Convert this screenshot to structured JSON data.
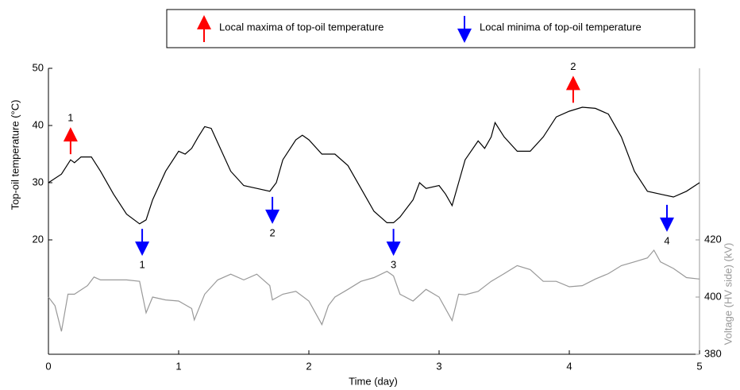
{
  "chart_data": {
    "type": "line",
    "xlabel": "Time (day)",
    "ylabel": "Top-oil temperature (°C)",
    "y2label": "Voltage (HV side) (kV)",
    "xlim": [
      0,
      5
    ],
    "xticks": [
      0,
      1,
      2,
      3,
      4,
      5
    ],
    "ylim": [
      0,
      50
    ],
    "yticks": [
      20,
      30,
      40,
      50
    ],
    "y2lim": [
      380,
      480
    ],
    "y2ticks": [
      380,
      400,
      420
    ],
    "y2color": "#999999",
    "legend": [
      {
        "kind": "max",
        "label": "Local maxima of top-oil temperature",
        "color": "#ff0000"
      },
      {
        "kind": "min",
        "label": "Local minima of top-oil temperature",
        "color": "#0000ff"
      }
    ],
    "annotations": [
      {
        "kind": "max",
        "x": 0.17,
        "y": 39.7,
        "label": "1"
      },
      {
        "kind": "max",
        "x": 4.03,
        "y": 48.7,
        "label": "2"
      },
      {
        "kind": "min",
        "x": 0.72,
        "y": 17.2,
        "label": "1"
      },
      {
        "kind": "min",
        "x": 1.72,
        "y": 22.8,
        "label": "2"
      },
      {
        "kind": "min",
        "x": 2.65,
        "y": 17.2,
        "label": "3"
      },
      {
        "kind": "min",
        "x": 4.75,
        "y": 21.4,
        "label": "4"
      }
    ],
    "series": [
      {
        "name": "Top-oil temperature",
        "color": "#000000",
        "x": [
          0,
          0.1,
          0.17,
          0.2,
          0.25,
          0.33,
          0.4,
          0.5,
          0.6,
          0.7,
          0.75,
          0.8,
          0.9,
          1.0,
          1.05,
          1.1,
          1.15,
          1.2,
          1.25,
          1.3,
          1.4,
          1.5,
          1.6,
          1.7,
          1.75,
          1.8,
          1.9,
          1.95,
          2.0,
          2.1,
          2.2,
          2.3,
          2.4,
          2.5,
          2.6,
          2.65,
          2.7,
          2.8,
          2.85,
          2.9,
          3.0,
          3.05,
          3.1,
          3.15,
          3.2,
          3.3,
          3.35,
          3.4,
          3.43,
          3.5,
          3.6,
          3.7,
          3.8,
          3.9,
          4.0,
          4.1,
          4.2,
          4.3,
          4.4,
          4.5,
          4.6,
          4.7,
          4.8,
          4.9,
          5.0
        ],
        "values": [
          30,
          31.5,
          34,
          33.5,
          34.5,
          34.5,
          32,
          28,
          24.5,
          22.8,
          23.5,
          27,
          32,
          35.5,
          35,
          36,
          38,
          39.8,
          39.5,
          37,
          32,
          29.5,
          29,
          28.5,
          30,
          34,
          37.5,
          38.3,
          37.5,
          35,
          35,
          33,
          29,
          25,
          23,
          23,
          24,
          27,
          30,
          29,
          29.5,
          28,
          26,
          30,
          34,
          37.3,
          36,
          38,
          40.5,
          38,
          35.5,
          35.5,
          38,
          41.5,
          42.5,
          43.2,
          43,
          42,
          38,
          32,
          28.5,
          28,
          27.5,
          28.5,
          30
        ]
      },
      {
        "name": "Voltage",
        "color": "#999999",
        "axis": "y2",
        "x": [
          0,
          0.05,
          0.1,
          0.15,
          0.2,
          0.3,
          0.35,
          0.4,
          0.5,
          0.6,
          0.7,
          0.75,
          0.8,
          0.9,
          1.0,
          1.1,
          1.12,
          1.2,
          1.3,
          1.4,
          1.5,
          1.6,
          1.7,
          1.72,
          1.8,
          1.9,
          2.0,
          2.1,
          2.15,
          2.2,
          2.3,
          2.4,
          2.5,
          2.6,
          2.65,
          2.7,
          2.8,
          2.9,
          3.0,
          3.1,
          3.15,
          3.2,
          3.3,
          3.4,
          3.5,
          3.6,
          3.7,
          3.8,
          3.9,
          4.0,
          4.1,
          4.2,
          4.3,
          4.4,
          4.5,
          4.6,
          4.65,
          4.7,
          4.8,
          4.9,
          5.0
        ],
        "values": [
          400,
          397,
          388,
          401,
          401,
          404,
          407,
          406,
          406,
          406,
          405.5,
          394.5,
          400,
          399,
          398.6,
          396,
          392,
          401,
          406,
          408,
          406,
          408,
          404,
          399,
          401,
          402,
          398.6,
          390.4,
          397,
          400,
          402.7,
          405.5,
          406.8,
          409,
          407.4,
          401,
          398.6,
          402.7,
          400,
          391.8,
          401,
          400.8,
          402,
          405.5,
          408.2,
          411,
          409.6,
          405.5,
          405.5,
          403.6,
          404,
          406.3,
          408.2,
          411,
          412.3,
          413.7,
          416.4,
          412.3,
          410,
          406.8,
          406.3
        ]
      }
    ]
  }
}
